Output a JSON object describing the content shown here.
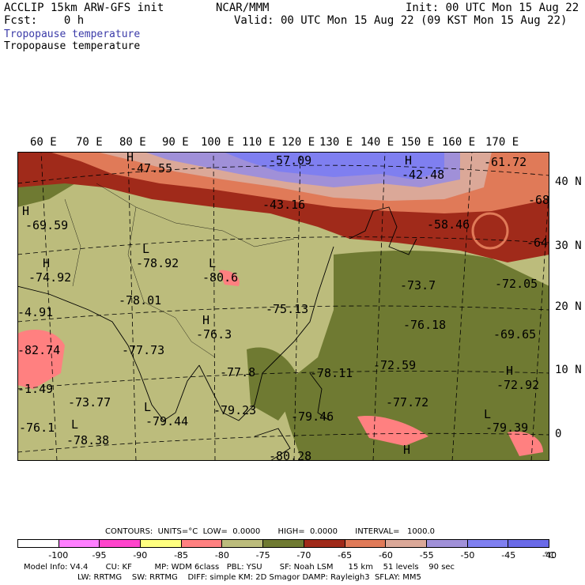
{
  "header": {
    "model": "ACCLIP 15km ARW-GFS init",
    "org": "NCAR/MMM",
    "init": "Init: 00 UTC Mon 15 Aug 22",
    "fcst": "Fcst:    0 h",
    "valid": "Valid: 00 UTC Mon 15 Aug 22 (09 KST Mon 15 Aug 22)",
    "field1": "Tropopause temperature",
    "field2": "Tropopause temperature"
  },
  "colors": {
    "field1_text": "#3a3aa8",
    "bins": [
      "#ffffff",
      "#ff7fff",
      "#ff44cc",
      "#ffff80",
      "#ff8080",
      "#bcbc7c",
      "#6f7a32",
      "#a02a1a",
      "#e07a58",
      "#dba898",
      "#a090d8",
      "#7f7ff0",
      "#6a6ae8"
    ]
  },
  "lon_labels": [
    "60 E",
    "70 E",
    "80 E",
    "90 E",
    "100 E",
    "110 E",
    "120 E",
    "130 E",
    "140 E",
    "150 E",
    "160 E",
    "170 E"
  ],
  "lat_labels": [
    "40 N",
    "30 N",
    "20 N",
    "10 N",
    "0"
  ],
  "map_labels": [
    {
      "t": "H"
    },
    {
      "t": "-47.55"
    },
    {
      "t": "-57.09"
    },
    {
      "t": "H"
    },
    {
      "t": "-42.48"
    },
    {
      "t": "-61.72"
    },
    {
      "t": "H"
    },
    {
      "t": "-69.59"
    },
    {
      "t": "-43.16"
    },
    {
      "t": "-68"
    },
    {
      "t": "-58.46"
    },
    {
      "t": "L"
    },
    {
      "t": "-78.92"
    },
    {
      "t": "L"
    },
    {
      "t": "-80.6"
    },
    {
      "t": "H"
    },
    {
      "t": "-74.92"
    },
    {
      "t": "-78.01"
    },
    {
      "t": "-75.13"
    },
    {
      "t": "-73.7"
    },
    {
      "t": "-72.05"
    },
    {
      "t": "-64"
    },
    {
      "t": "-4.91"
    },
    {
      "t": "H"
    },
    {
      "t": "-76.3"
    },
    {
      "t": "-76.18"
    },
    {
      "t": "-69.65"
    },
    {
      "t": "-82.74"
    },
    {
      "t": "-77.73"
    },
    {
      "t": "-72.59"
    },
    {
      "t": "-77.8"
    },
    {
      "t": "-78.11"
    },
    {
      "t": "-1.49"
    },
    {
      "t": "-73.77"
    },
    {
      "t": "-79.23"
    },
    {
      "t": "-77.72"
    },
    {
      "t": "-72.92"
    },
    {
      "t": "-76.1"
    },
    {
      "t": "-78.38"
    },
    {
      "t": "-79.44"
    },
    {
      "t": "-79.46"
    },
    {
      "t": "-79.39"
    },
    {
      "t": "-80.28"
    },
    {
      "t": "H"
    },
    {
      "t": "L"
    },
    {
      "t": "L"
    },
    {
      "t": "L"
    },
    {
      "t": "H"
    }
  ],
  "contours_line": "CONTOURS:  UNITS=°C  LOW=  0.0000       HIGH=  0.0000       INTERVAL=   1000.0",
  "colorbar_labels": [
    "-100",
    "-95",
    "-90",
    "-85",
    "-80",
    "-75",
    "-70",
    "-65",
    "-60",
    "-55",
    "-50",
    "-45",
    "-40",
    "°C"
  ],
  "footer": {
    "line1": "Model Info: V4.4       CU: KF         MP: WDM 6class   PBL: YSU       SF: Noah LSM      15 km    51 levels    90 sec",
    "line2": "LW: RRTMG    SW: RRTMG    DIFF: simple KM: 2D Smagor DAMP: Rayleigh3  SFLAY: MM5"
  }
}
